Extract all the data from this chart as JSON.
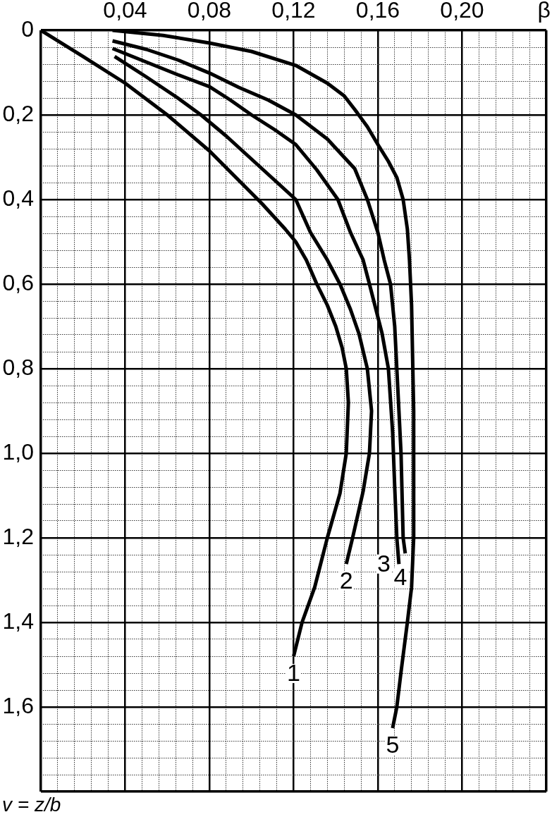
{
  "chart_data": {
    "type": "line",
    "xlabel": "β",
    "ylabel": "v = z/b",
    "xlim": [
      0,
      0.24
    ],
    "ylim": [
      1.8,
      0
    ],
    "xticks": [
      {
        "value": 0,
        "label": null
      },
      {
        "value": 0.008,
        "label": null
      },
      {
        "value": 0.016,
        "label": null
      },
      {
        "value": 0.024,
        "label": null
      },
      {
        "value": 0.032,
        "label": null
      },
      {
        "value": 0.04,
        "label": "0,04"
      },
      {
        "value": 0.048,
        "label": null
      },
      {
        "value": 0.056,
        "label": null
      },
      {
        "value": 0.064,
        "label": null
      },
      {
        "value": 0.072,
        "label": null
      },
      {
        "value": 0.08,
        "label": "0,08"
      },
      {
        "value": 0.088,
        "label": null
      },
      {
        "value": 0.096,
        "label": null
      },
      {
        "value": 0.104,
        "label": null
      },
      {
        "value": 0.112,
        "label": null
      },
      {
        "value": 0.12,
        "label": "0,12"
      },
      {
        "value": 0.128,
        "label": null
      },
      {
        "value": 0.136,
        "label": null
      },
      {
        "value": 0.144,
        "label": null
      },
      {
        "value": 0.152,
        "label": null
      },
      {
        "value": 0.16,
        "label": "0,16"
      },
      {
        "value": 0.168,
        "label": null
      },
      {
        "value": 0.176,
        "label": null
      },
      {
        "value": 0.184,
        "label": null
      },
      {
        "value": 0.192,
        "label": null
      },
      {
        "value": 0.2,
        "label": "0,20"
      },
      {
        "value": 0.208,
        "label": null
      },
      {
        "value": 0.216,
        "label": null
      },
      {
        "value": 0.224,
        "label": null
      },
      {
        "value": 0.232,
        "label": null
      },
      {
        "value": 0.24,
        "label": null
      }
    ],
    "yticks": [
      0,
      {
        "value": 0.04,
        "label": null
      },
      {
        "value": 0.08,
        "label": null
      },
      {
        "value": 0.12,
        "label": null
      },
      {
        "value": 0.16,
        "label": null
      },
      {
        "value": 0.2,
        "label": "0,2"
      },
      {
        "value": 0.24,
        "label": null
      },
      {
        "value": 0.28,
        "label": null
      },
      {
        "value": 0.32,
        "label": null
      },
      {
        "value": 0.36,
        "label": null
      },
      {
        "value": 0.4,
        "label": "0,4"
      },
      {
        "value": 0.44,
        "label": null
      },
      {
        "value": 0.48,
        "label": null
      },
      {
        "value": 0.52,
        "label": null
      },
      {
        "value": 0.56,
        "label": null
      },
      {
        "value": 0.6,
        "label": "0,6"
      },
      {
        "value": 0.64,
        "label": null
      },
      {
        "value": 0.68,
        "label": null
      },
      {
        "value": 0.72,
        "label": null
      },
      {
        "value": 0.76,
        "label": null
      },
      {
        "value": 0.8,
        "label": "0,8"
      },
      {
        "value": 0.84,
        "label": null
      },
      {
        "value": 0.88,
        "label": null
      },
      {
        "value": 0.92,
        "label": null
      },
      {
        "value": 0.96,
        "label": null
      },
      {
        "value": 1.0,
        "label": "1,0"
      },
      {
        "value": 1.04,
        "label": null
      },
      {
        "value": 1.08,
        "label": null
      },
      {
        "value": 1.12,
        "label": null
      },
      {
        "value": 1.16,
        "label": null
      },
      {
        "value": 1.2,
        "label": "1,2"
      },
      {
        "value": 1.24,
        "label": null
      },
      {
        "value": 1.28,
        "label": null
      },
      {
        "value": 1.32,
        "label": null
      },
      {
        "value": 1.36,
        "label": null
      },
      {
        "value": 1.4,
        "label": "1,4"
      },
      {
        "value": 1.44,
        "label": null
      },
      {
        "value": 1.48,
        "label": null
      },
      {
        "value": 1.52,
        "label": null
      },
      {
        "value": 1.56,
        "label": null
      },
      {
        "value": 1.6,
        "label": "1,6"
      },
      {
        "value": 1.64,
        "label": null
      },
      {
        "value": 1.68,
        "label": null
      },
      {
        "value": 1.72,
        "label": null
      },
      {
        "value": 1.76,
        "label": null
      },
      {
        "value": 1.8,
        "label": null
      }
    ],
    "grid": true,
    "marker": "none",
    "line_style": "solid",
    "series": [
      {
        "name": "1",
        "color": "#000000",
        "x": [
          0,
          0.02,
          0.04,
          0.06,
          0.08,
          0.093,
          0.105,
          0.116,
          0.121,
          0.126,
          0.131,
          0.136,
          0.14,
          0.143,
          0.145,
          0.146,
          0.145,
          0.142,
          0.136,
          0.13,
          0.124,
          0.121,
          0.12
        ],
        "values": [
          0,
          0.062,
          0.125,
          0.2,
          0.285,
          0.35,
          0.41,
          0.47,
          0.5,
          0.543,
          0.6,
          0.65,
          0.7,
          0.75,
          0.8,
          0.88,
          1.0,
          1.095,
          1.2,
          1.317,
          1.4,
          1.46,
          1.48
        ]
      },
      {
        "name": "2",
        "color": "#000000",
        "x": [
          0.035,
          0.05,
          0.065,
          0.076,
          0.088,
          0.099,
          0.11,
          0.121,
          0.128,
          0.136,
          0.142,
          0.147,
          0.151,
          0.155,
          0.157,
          0.156,
          0.153,
          0.148,
          0.145
        ],
        "values": [
          0.062,
          0.11,
          0.16,
          0.2,
          0.25,
          0.3,
          0.35,
          0.4,
          0.478,
          0.543,
          0.6,
          0.66,
          0.717,
          0.8,
          0.9,
          1.0,
          1.09,
          1.2,
          1.262
        ]
      },
      {
        "name": "3",
        "color": "#000000",
        "x": [
          0.034,
          0.05,
          0.065,
          0.08,
          0.09,
          0.1,
          0.111,
          0.121,
          0.131,
          0.141,
          0.147,
          0.153,
          0.156,
          0.162,
          0.165,
          0.167,
          0.168,
          0.169,
          0.17
        ],
        "values": [
          0.043,
          0.075,
          0.105,
          0.133,
          0.165,
          0.2,
          0.235,
          0.27,
          0.33,
          0.4,
          0.478,
          0.543,
          0.6,
          0.717,
          0.8,
          0.95,
          1.08,
          1.2,
          1.262
        ]
      },
      {
        "name": "4",
        "color": "#000000",
        "x": [
          0.034,
          0.05,
          0.065,
          0.08,
          0.094,
          0.108,
          0.121,
          0.136,
          0.149,
          0.155,
          0.16,
          0.163,
          0.166,
          0.168,
          0.169,
          0.171,
          0.172,
          0.173
        ],
        "values": [
          0.025,
          0.045,
          0.07,
          0.101,
          0.135,
          0.165,
          0.2,
          0.257,
          0.327,
          0.4,
          0.478,
          0.543,
          0.6,
          0.7,
          0.8,
          1.0,
          1.2,
          1.237
        ]
      },
      {
        "name": "5",
        "color": "#000000",
        "x": [
          0.034,
          0.058,
          0.08,
          0.1,
          0.121,
          0.136,
          0.144,
          0.149,
          0.155,
          0.16,
          0.165,
          0.169,
          0.172,
          0.174,
          0.175,
          0.176,
          0.177,
          0.177,
          0.176,
          0.174,
          0.171,
          0.169,
          0.167
        ],
        "values": [
          0,
          0.012,
          0.03,
          0.05,
          0.083,
          0.125,
          0.155,
          0.187,
          0.228,
          0.27,
          0.31,
          0.348,
          0.4,
          0.47,
          0.543,
          0.65,
          0.9,
          1.2,
          1.317,
          1.4,
          1.517,
          1.6,
          1.65
        ]
      }
    ]
  }
}
